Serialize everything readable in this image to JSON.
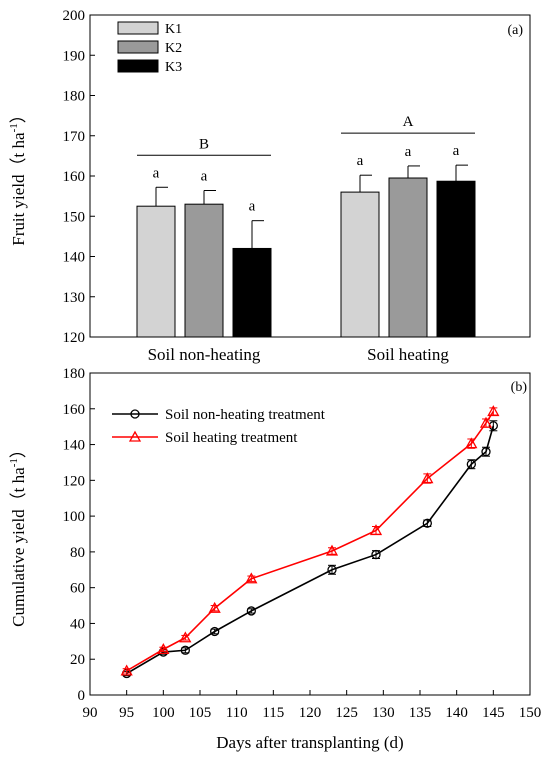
{
  "chart_data": [
    {
      "type": "bar",
      "panel_label": "(a)",
      "categories": [
        "Soil non-heating",
        "Soil heating"
      ],
      "ylabel_main": "Fruit yield",
      "ylabel_unit": "t ha",
      "ylabel_exp": "-1",
      "ylim": [
        120,
        200
      ],
      "yticks": [
        120,
        130,
        140,
        150,
        160,
        170,
        180,
        190,
        200
      ],
      "series": [
        {
          "name": "K1",
          "color": "#d3d3d3",
          "values": [
            152.5,
            156.0
          ],
          "errors": [
            4.7,
            4.2
          ]
        },
        {
          "name": "K2",
          "color": "#9a9a9a",
          "values": [
            153.0,
            159.5
          ],
          "errors": [
            3.4,
            3.0
          ]
        },
        {
          "name": "K3",
          "color": "#000000",
          "values": [
            142.0,
            158.7
          ],
          "errors": [
            6.9,
            4.0
          ]
        }
      ],
      "bar_letters": [
        [
          "a",
          "a",
          "a"
        ],
        [
          "a",
          "a",
          "a"
        ]
      ],
      "group_letters": [
        "B",
        "A"
      ],
      "legend": "top-left"
    },
    {
      "type": "line",
      "panel_label": "(b)",
      "xlabel": "Days after transplanting (d)",
      "ylabel_main": "Cumulative yield",
      "ylabel_unit": "t ha",
      "ylabel_exp": "-1",
      "xlim": [
        90,
        150
      ],
      "ylim": [
        0,
        180
      ],
      "xticks": [
        90,
        95,
        100,
        105,
        110,
        115,
        120,
        125,
        130,
        135,
        140,
        145,
        150
      ],
      "yticks": [
        0,
        20,
        40,
        60,
        80,
        100,
        120,
        140,
        160,
        180
      ],
      "series": [
        {
          "name": "Soil non-heating treatment",
          "color": "#000000",
          "marker": "circle",
          "x": [
            95,
            100,
            103,
            107,
            112,
            123,
            129,
            136,
            142,
            144,
            145
          ],
          "y": [
            12,
            24,
            25,
            35.5,
            47,
            70,
            78.5,
            96,
            129,
            136,
            150.5
          ],
          "err": [
            1.2,
            1.2,
            1.4,
            1.3,
            1.2,
            2.5,
            2.2,
            1.8,
            2.5,
            2.5,
            2.8
          ]
        },
        {
          "name": "Soil heating treatment",
          "color": "#ff0000",
          "marker": "triangle",
          "x": [
            95,
            100,
            103,
            107,
            112,
            123,
            129,
            136,
            142,
            144,
            145
          ],
          "y": [
            13.5,
            25.5,
            32,
            48.5,
            65,
            80.5,
            92,
            121,
            140.5,
            152,
            158.5
          ],
          "err": [
            1.2,
            1.2,
            1.3,
            1.5,
            1.5,
            1.8,
            2.2,
            2.6,
            2.6,
            2.3,
            2.0
          ]
        }
      ],
      "legend": "top-left"
    }
  ]
}
